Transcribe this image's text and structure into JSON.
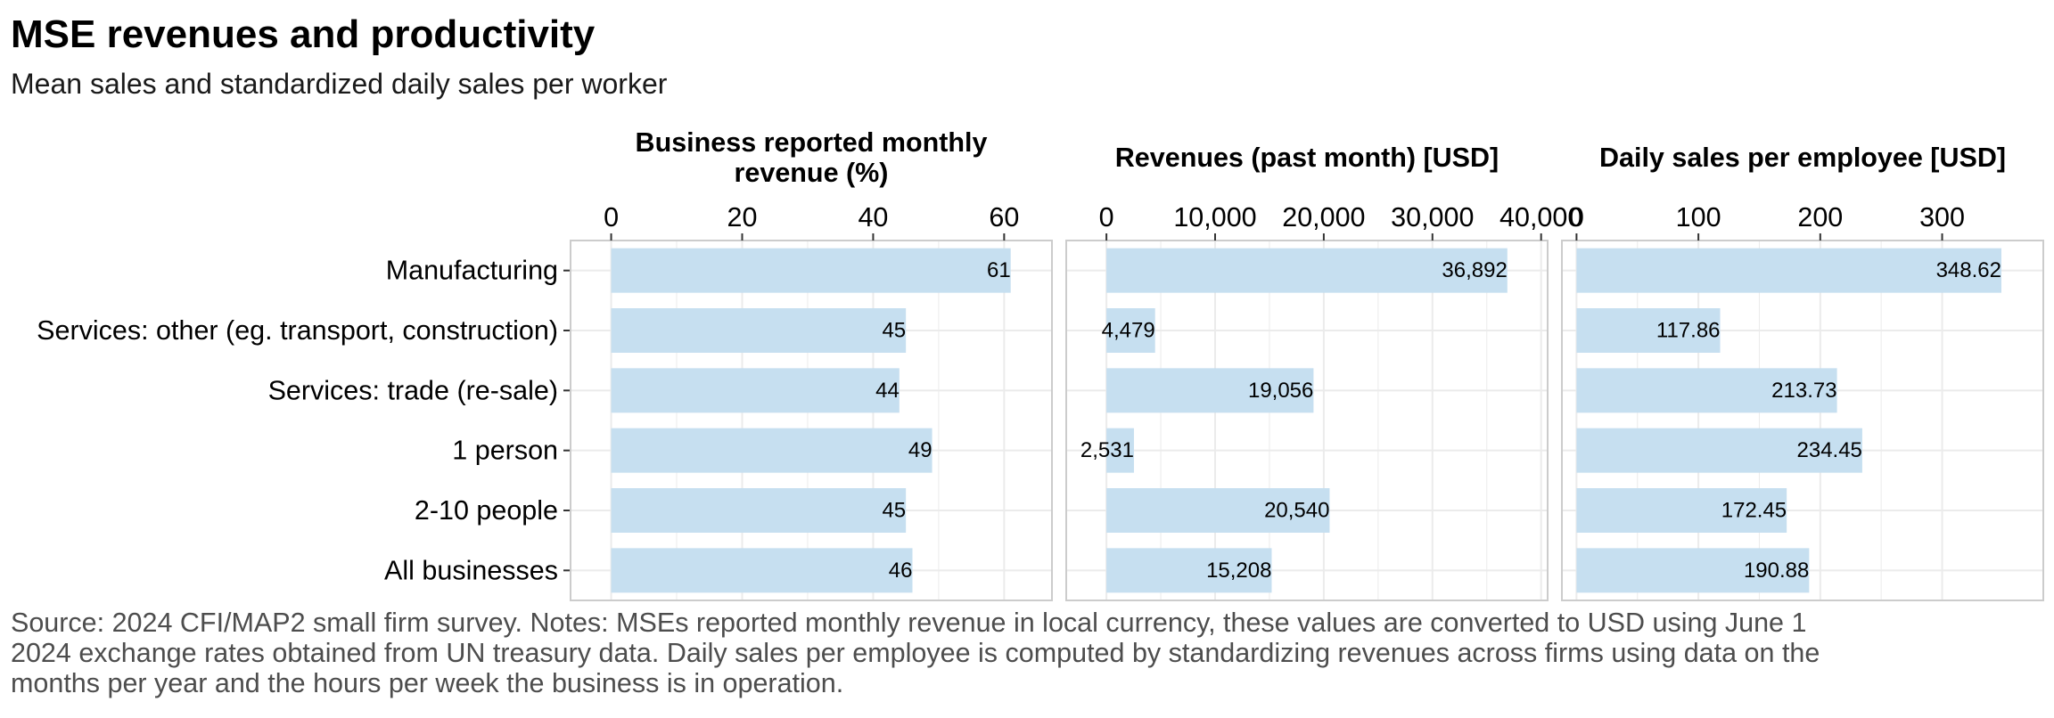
{
  "title": "MSE revenues and productivity",
  "subtitle": "Mean sales and standardized daily sales per worker",
  "caption_lines": [
    "Source: 2024 CFI/MAP2 small firm survey. Notes: MSEs reported monthly revenue in local currency, these values are converted to USD using June 1",
    "2024 exchange rates obtained from UN treasury data. Daily sales per employee is computed by standardizing revenues across firms using data on the",
    "months per year and the hours per week the business is in operation."
  ],
  "colors": {
    "bar": "#c6dff0",
    "panel_border": "#cccccc",
    "gridline": "#ebebeb",
    "text": "#000000",
    "axis_text": "#000000"
  },
  "chart_data": [
    {
      "type": "bar",
      "orientation": "horizontal",
      "title": "Business reported monthly revenue (%)",
      "title_lines": [
        "Business reported monthly",
        "revenue (%)"
      ],
      "categories": [
        "Manufacturing",
        "Services: other (eg. transport, construction)",
        "Services: trade (re-sale)",
        "1 person",
        "2-10 people",
        "All businesses"
      ],
      "values": [
        61,
        45,
        44,
        49,
        45,
        46
      ],
      "value_labels": [
        "61",
        "45",
        "44",
        "49",
        "45",
        "46"
      ],
      "xlim": [
        -6.2,
        67.3
      ],
      "ticks": [
        0,
        20,
        40,
        60
      ],
      "tick_labels": [
        "0",
        "20",
        "40",
        "60"
      ],
      "grid": true
    },
    {
      "type": "bar",
      "orientation": "horizontal",
      "title": "Revenues (past month) [USD]",
      "title_lines": [
        "Revenues (past month) [USD]"
      ],
      "categories": [
        "Manufacturing",
        "Services: other (eg. transport, construction)",
        "Services: trade (re-sale)",
        "1 person",
        "2-10 people",
        "All businesses"
      ],
      "values": [
        36892,
        4479,
        19056,
        2531,
        20540,
        15208
      ],
      "value_labels": [
        "36,892",
        "4,479",
        "19,056",
        "2,531",
        "20,540",
        "15,208"
      ],
      "xlim": [
        -3700,
        40600
      ],
      "ticks": [
        0,
        10000,
        20000,
        30000,
        40000
      ],
      "tick_labels": [
        "0",
        "10,000",
        "20,000",
        "30,000",
        "40,000"
      ],
      "grid": true
    },
    {
      "type": "bar",
      "orientation": "horizontal",
      "title": "Daily sales per employee [USD]",
      "title_lines": [
        "Daily sales per employee [USD]"
      ],
      "categories": [
        "Manufacturing",
        "Services: other (eg. transport, construction)",
        "Services: trade (re-sale)",
        "1 person",
        "2-10 people",
        "All businesses"
      ],
      "values": [
        348.62,
        117.86,
        213.73,
        234.45,
        172.45,
        190.88
      ],
      "value_labels": [
        "348.62",
        "117.86",
        "213.73",
        "234.45",
        "172.45",
        "190.88"
      ],
      "xlim": [
        -12,
        383
      ],
      "ticks": [
        0,
        100,
        200,
        300
      ],
      "tick_labels": [
        "0",
        "100",
        "200",
        "300"
      ],
      "grid": true
    }
  ]
}
